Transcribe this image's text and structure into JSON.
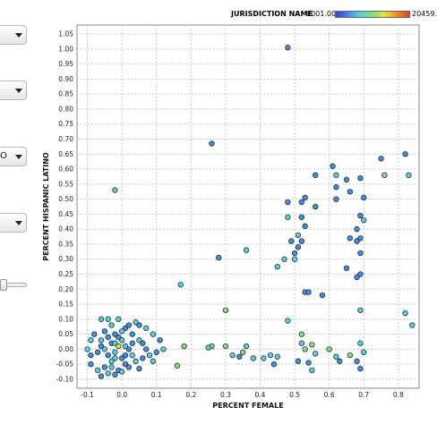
{
  "left_panel": {
    "dropdowns": [
      {
        "name": "dropdown-1",
        "value": ""
      },
      {
        "name": "dropdown-2",
        "value": ""
      },
      {
        "name": "dropdown-3",
        "value": "O"
      },
      {
        "name": "dropdown-4",
        "value": ""
      }
    ],
    "slider": {
      "value": 0.0
    }
  },
  "legend": {
    "title": "JURISDICTION NAME",
    "min": "0001.000",
    "max": "20459.",
    "colors": [
      "#3a3ad8",
      "#3f8fe8",
      "#56d0e0",
      "#7de07a",
      "#e8e03a",
      "#f08a2a",
      "#e03a2a"
    ]
  },
  "chart_data": {
    "type": "scatter",
    "xlabel": "PERCENT FEMALE",
    "ylabel": "PERCENT HISPANIC LATINO",
    "xlim": [
      -0.13,
      0.86
    ],
    "ylim": [
      -0.13,
      1.08
    ],
    "xticks": [
      "-0.1",
      "0.0",
      "0.1",
      "0.2",
      "0.3",
      "0.4",
      "0.5",
      "0.6",
      "0.7",
      "0.8"
    ],
    "yticks": [
      "-0.10",
      "-0.05",
      "0.00",
      "0.05",
      "0.10",
      "0.15",
      "0.20",
      "0.25",
      "0.30",
      "0.35",
      "0.40",
      "0.45",
      "0.50",
      "0.55",
      "0.60",
      "0.65",
      "0.70",
      "0.75",
      "0.80",
      "0.85",
      "0.90",
      "0.95",
      "1.00",
      "1.05"
    ],
    "grid": true,
    "points": [
      {
        "x": 0.48,
        "y": 1.005,
        "c": "#3f8fe8"
      },
      {
        "x": 0.26,
        "y": 0.685,
        "c": "#3f8fe8"
      },
      {
        "x": -0.02,
        "y": 0.53,
        "c": "#56d0e0"
      },
      {
        "x": 0.17,
        "y": 0.215,
        "c": "#56d0e0"
      },
      {
        "x": 0.28,
        "y": 0.305,
        "c": "#3f8fe8"
      },
      {
        "x": 0.36,
        "y": 0.33,
        "c": "#56d0e0"
      },
      {
        "x": 0.3,
        "y": 0.13,
        "c": "#7de07a"
      },
      {
        "x": 0.48,
        "y": 0.49,
        "c": "#3f8fe8"
      },
      {
        "x": 0.48,
        "y": 0.44,
        "c": "#56d0e0"
      },
      {
        "x": 0.49,
        "y": 0.36,
        "c": "#3f8fe8"
      },
      {
        "x": 0.47,
        "y": 0.3,
        "c": "#56d0e0"
      },
      {
        "x": 0.45,
        "y": 0.275,
        "c": "#56d0e0"
      },
      {
        "x": 0.52,
        "y": 0.49,
        "c": "#3f8fe8"
      },
      {
        "x": 0.53,
        "y": 0.505,
        "c": "#3f8fe8"
      },
      {
        "x": 0.52,
        "y": 0.44,
        "c": "#3f8fe8"
      },
      {
        "x": 0.53,
        "y": 0.41,
        "c": "#3f8fe8"
      },
      {
        "x": 0.51,
        "y": 0.38,
        "c": "#56d0e0"
      },
      {
        "x": 0.52,
        "y": 0.36,
        "c": "#3f8fe8"
      },
      {
        "x": 0.51,
        "y": 0.34,
        "c": "#3f8fe8"
      },
      {
        "x": 0.5,
        "y": 0.32,
        "c": "#3f8fe8"
      },
      {
        "x": 0.5,
        "y": 0.3,
        "c": "#56d0e0"
      },
      {
        "x": 0.56,
        "y": 0.475,
        "c": "#3f8fe8"
      },
      {
        "x": 0.56,
        "y": 0.58,
        "c": "#3f8fe8"
      },
      {
        "x": 0.61,
        "y": 0.61,
        "c": "#3f8fe8"
      },
      {
        "x": 0.62,
        "y": 0.58,
        "c": "#56d0e0"
      },
      {
        "x": 0.62,
        "y": 0.54,
        "c": "#3f8fe8"
      },
      {
        "x": 0.62,
        "y": 0.5,
        "c": "#3f8fe8"
      },
      {
        "x": 0.65,
        "y": 0.565,
        "c": "#3f8fe8"
      },
      {
        "x": 0.66,
        "y": 0.525,
        "c": "#3f8fe8"
      },
      {
        "x": 0.69,
        "y": 0.57,
        "c": "#3f8fe8"
      },
      {
        "x": 0.7,
        "y": 0.505,
        "c": "#3f8fe8"
      },
      {
        "x": 0.69,
        "y": 0.445,
        "c": "#3f8fe8"
      },
      {
        "x": 0.7,
        "y": 0.43,
        "c": "#56d0e0"
      },
      {
        "x": 0.68,
        "y": 0.4,
        "c": "#3f8fe8"
      },
      {
        "x": 0.69,
        "y": 0.37,
        "c": "#3f8fe8"
      },
      {
        "x": 0.68,
        "y": 0.36,
        "c": "#3f8fe8"
      },
      {
        "x": 0.69,
        "y": 0.32,
        "c": "#3f8fe8"
      },
      {
        "x": 0.69,
        "y": 0.25,
        "c": "#3f8fe8"
      },
      {
        "x": 0.68,
        "y": 0.24,
        "c": "#3f8fe8"
      },
      {
        "x": 0.66,
        "y": 0.37,
        "c": "#3f8fe8"
      },
      {
        "x": 0.65,
        "y": 0.27,
        "c": "#3f8fe8"
      },
      {
        "x": 0.75,
        "y": 0.635,
        "c": "#3f8fe8"
      },
      {
        "x": 0.76,
        "y": 0.58,
        "c": "#7de07a"
      },
      {
        "x": 0.82,
        "y": 0.65,
        "c": "#3f8fe8"
      },
      {
        "x": 0.83,
        "y": 0.58,
        "c": "#56d0e0"
      },
      {
        "x": 0.82,
        "y": 0.12,
        "c": "#56d0e0"
      },
      {
        "x": 0.84,
        "y": 0.08,
        "c": "#56d0e0"
      },
      {
        "x": 0.53,
        "y": 0.19,
        "c": "#3f8fe8"
      },
      {
        "x": 0.54,
        "y": 0.19,
        "c": "#3f8fe8"
      },
      {
        "x": 0.58,
        "y": 0.18,
        "c": "#3f8fe8"
      },
      {
        "x": 0.69,
        "y": 0.13,
        "c": "#56d0e0"
      },
      {
        "x": 0.48,
        "y": 0.095,
        "c": "#56d0e0"
      },
      {
        "x": 0.52,
        "y": 0.05,
        "c": "#7de07a"
      },
      {
        "x": 0.52,
        "y": 0.02,
        "c": "#56d0e0"
      },
      {
        "x": 0.53,
        "y": 0.0,
        "c": "#7de07a"
      },
      {
        "x": 0.55,
        "y": 0.015,
        "c": "#7de07a"
      },
      {
        "x": 0.56,
        "y": -0.015,
        "c": "#56d0e0"
      },
      {
        "x": 0.54,
        "y": -0.045,
        "c": "#3f8fe8"
      },
      {
        "x": 0.55,
        "y": -0.07,
        "c": "#56d0e0"
      },
      {
        "x": 0.51,
        "y": -0.04,
        "c": "#3f8fe8"
      },
      {
        "x": 0.6,
        "y": 0.0,
        "c": "#7de07a"
      },
      {
        "x": 0.62,
        "y": -0.025,
        "c": "#56d0e0"
      },
      {
        "x": 0.63,
        "y": -0.04,
        "c": "#3f8fe8"
      },
      {
        "x": 0.66,
        "y": -0.02,
        "c": "#7de07a"
      },
      {
        "x": 0.69,
        "y": 0.02,
        "c": "#56d0e0"
      },
      {
        "x": 0.7,
        "y": -0.01,
        "c": "#56d0e0"
      },
      {
        "x": 0.68,
        "y": -0.04,
        "c": "#3f8fe8"
      },
      {
        "x": 0.69,
        "y": -0.065,
        "c": "#3f8fe8"
      },
      {
        "x": 0.3,
        "y": 0.01,
        "c": "#7de07a"
      },
      {
        "x": 0.32,
        "y": -0.02,
        "c": "#56d0e0"
      },
      {
        "x": 0.34,
        "y": -0.025,
        "c": "#3f8fe8"
      },
      {
        "x": 0.36,
        "y": 0.01,
        "c": "#56d0e0"
      },
      {
        "x": 0.35,
        "y": -0.01,
        "c": "#7de07a"
      },
      {
        "x": 0.38,
        "y": -0.03,
        "c": "#56d0e0"
      },
      {
        "x": 0.41,
        "y": -0.03,
        "c": "#56d0e0"
      },
      {
        "x": 0.43,
        "y": -0.02,
        "c": "#56d0e0"
      },
      {
        "x": 0.44,
        "y": -0.05,
        "c": "#3f8fe8"
      },
      {
        "x": 0.45,
        "y": -0.025,
        "c": "#56d0e0"
      },
      {
        "x": 0.26,
        "y": 0.01,
        "c": "#7de07a"
      },
      {
        "x": 0.25,
        "y": 0.005,
        "c": "#56d0e0"
      },
      {
        "x": 0.18,
        "y": 0.01,
        "c": "#7de07a"
      },
      {
        "x": 0.16,
        "y": -0.055,
        "c": "#7de07a"
      },
      {
        "x": 0.11,
        "y": 0.03,
        "c": "#3f8fe8"
      },
      {
        "x": 0.12,
        "y": 0.0,
        "c": "#56d0e0"
      },
      {
        "x": 0.1,
        "y": -0.01,
        "c": "#3f8fe8"
      },
      {
        "x": 0.09,
        "y": 0.05,
        "c": "#56d0e0"
      },
      {
        "x": 0.09,
        "y": -0.04,
        "c": "#56d0e0"
      },
      {
        "x": 0.07,
        "y": 0.07,
        "c": "#56d0e0"
      },
      {
        "x": 0.06,
        "y": 0.02,
        "c": "#3f8fe8"
      },
      {
        "x": 0.06,
        "y": -0.03,
        "c": "#3f8fe8"
      },
      {
        "x": 0.05,
        "y": -0.065,
        "c": "#3f8fe8"
      },
      {
        "x": 0.04,
        "y": 0.09,
        "c": "#56d0e0"
      },
      {
        "x": 0.03,
        "y": 0.05,
        "c": "#3f8fe8"
      },
      {
        "x": 0.03,
        "y": -0.02,
        "c": "#56d0e0"
      },
      {
        "x": 0.02,
        "y": 0.0,
        "c": "#3f8fe8"
      },
      {
        "x": 0.01,
        "y": 0.07,
        "c": "#3f8fe8"
      },
      {
        "x": 0.01,
        "y": -0.05,
        "c": "#3f8fe8"
      },
      {
        "x": 0.0,
        "y": 0.03,
        "c": "#56d0e0"
      },
      {
        "x": 0.0,
        "y": -0.03,
        "c": "#3f8fe8"
      },
      {
        "x": -0.01,
        "y": 0.1,
        "c": "#56d0e0"
      },
      {
        "x": -0.01,
        "y": 0.01,
        "c": "#e8e03a"
      },
      {
        "x": -0.01,
        "y": -0.07,
        "c": "#3f8fe8"
      },
      {
        "x": -0.02,
        "y": 0.05,
        "c": "#3f8fe8"
      },
      {
        "x": -0.02,
        "y": -0.01,
        "c": "#56d0e0"
      },
      {
        "x": -0.03,
        "y": 0.08,
        "c": "#56d0e0"
      },
      {
        "x": -0.03,
        "y": 0.02,
        "c": "#3f8fe8"
      },
      {
        "x": -0.03,
        "y": -0.04,
        "c": "#56d0e0"
      },
      {
        "x": -0.04,
        "y": 0.1,
        "c": "#56d0e0"
      },
      {
        "x": -0.04,
        "y": -0.02,
        "c": "#3f8fe8"
      },
      {
        "x": -0.05,
        "y": 0.06,
        "c": "#3f8fe8"
      },
      {
        "x": -0.05,
        "y": 0.0,
        "c": "#56d0e0"
      },
      {
        "x": -0.05,
        "y": -0.06,
        "c": "#3f8fe8"
      },
      {
        "x": -0.06,
        "y": 0.1,
        "c": "#56d0e0"
      },
      {
        "x": -0.06,
        "y": 0.03,
        "c": "#56d0e0"
      },
      {
        "x": -0.07,
        "y": -0.01,
        "c": "#3f8fe8"
      },
      {
        "x": -0.07,
        "y": -0.07,
        "c": "#56d0e0"
      },
      {
        "x": -0.08,
        "y": 0.05,
        "c": "#3f8fe8"
      },
      {
        "x": -0.09,
        "y": 0.03,
        "c": "#56d0e0"
      },
      {
        "x": -0.09,
        "y": -0.02,
        "c": "#3f8fe8"
      },
      {
        "x": -0.1,
        "y": 0.0,
        "c": "#56d0e0"
      },
      {
        "x": -0.09,
        "y": -0.05,
        "c": "#3f8fe8"
      },
      {
        "x": -0.06,
        "y": -0.09,
        "c": "#3f8fe8"
      },
      {
        "x": -0.04,
        "y": -0.08,
        "c": "#56d0e0"
      },
      {
        "x": -0.02,
        "y": -0.085,
        "c": "#3f8fe8"
      },
      {
        "x": 0.0,
        "y": -0.075,
        "c": "#56d0e0"
      },
      {
        "x": 0.02,
        "y": -0.06,
        "c": "#3f8fe8"
      },
      {
        "x": 0.04,
        "y": -0.04,
        "c": "#56d0e0"
      },
      {
        "x": 0.02,
        "y": 0.08,
        "c": "#3f8fe8"
      },
      {
        "x": 0.05,
        "y": 0.03,
        "c": "#56d0e0"
      },
      {
        "x": 0.07,
        "y": 0.0,
        "c": "#3f8fe8"
      },
      {
        "x": 0.08,
        "y": -0.02,
        "c": "#56d0e0"
      },
      {
        "x": -0.01,
        "y": 0.04,
        "c": "#3f8fe8"
      },
      {
        "x": -0.02,
        "y": 0.02,
        "c": "#56d0e0"
      },
      {
        "x": 0.01,
        "y": 0.01,
        "c": "#56d0e0"
      },
      {
        "x": -0.04,
        "y": 0.04,
        "c": "#3f8fe8"
      },
      {
        "x": -0.03,
        "y": -0.06,
        "c": "#56d0e0"
      },
      {
        "x": 0.03,
        "y": 0.02,
        "c": "#3f8fe8"
      },
      {
        "x": 0.0,
        "y": 0.06,
        "c": "#56d0e0"
      },
      {
        "x": -0.06,
        "y": 0.01,
        "c": "#3f8fe8"
      },
      {
        "x": 0.01,
        "y": -0.02,
        "c": "#3f8fe8"
      },
      {
        "x": -0.02,
        "y": -0.03,
        "c": "#56d0e0"
      },
      {
        "x": 0.05,
        "y": 0.08,
        "c": "#3f8fe8"
      }
    ]
  }
}
